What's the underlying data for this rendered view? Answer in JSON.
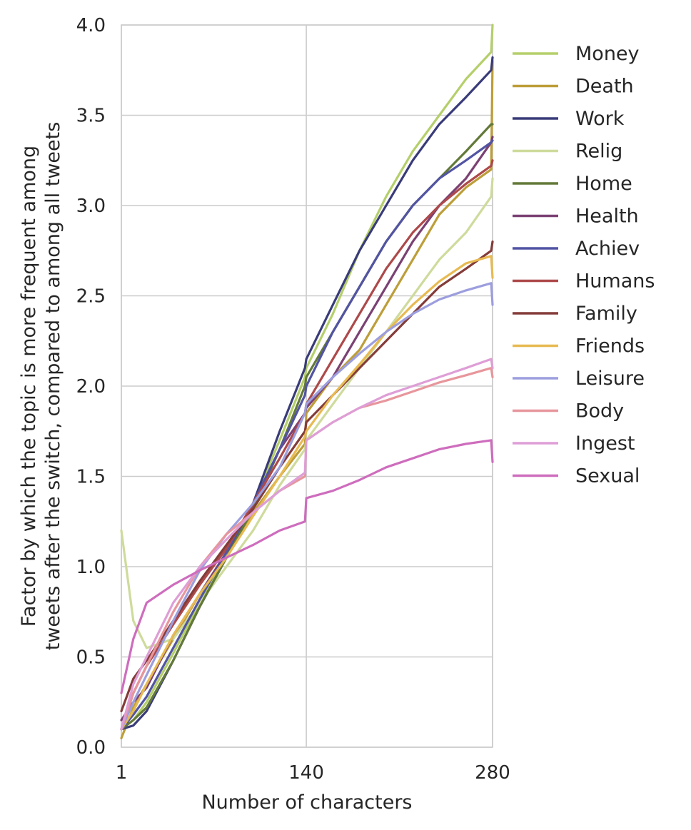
{
  "chart_data": {
    "type": "line",
    "xlabel": "Number of characters",
    "ylabel_lines": [
      "Factor by which the topic is more frequent among",
      "tweets after the switch, compared to among all tweets"
    ],
    "xlim": [
      1,
      280
    ],
    "ylim": [
      0,
      4
    ],
    "xticks": [
      1,
      140,
      280
    ],
    "xtick_labels": [
      "1",
      "140",
      "280"
    ],
    "yticks": [
      0,
      0.5,
      1,
      1.5,
      2,
      2.5,
      3,
      3.5,
      4
    ],
    "ytick_labels": [
      "0.0",
      "0.5",
      "1.0",
      "1.5",
      "2.0",
      "2.5",
      "3.0",
      "3.5",
      "4.0"
    ],
    "grid": true,
    "legend_position": "outside-right",
    "x": [
      1,
      10,
      20,
      40,
      60,
      80,
      100,
      120,
      139,
      140,
      160,
      180,
      200,
      220,
      240,
      260,
      279,
      280
    ],
    "series": [
      {
        "name": "Money",
        "color": "#b5cf6b",
        "values": [
          0.1,
          0.15,
          0.25,
          0.52,
          0.8,
          1.05,
          1.35,
          1.7,
          2.05,
          2.1,
          2.4,
          2.75,
          3.05,
          3.3,
          3.5,
          3.7,
          3.85,
          4.0
        ]
      },
      {
        "name": "Death",
        "color": "#bd9e39",
        "values": [
          0.05,
          0.22,
          0.35,
          0.6,
          0.85,
          1.05,
          1.3,
          1.5,
          1.68,
          1.85,
          2.05,
          2.2,
          2.45,
          2.7,
          2.95,
          3.1,
          3.2,
          3.8
        ]
      },
      {
        "name": "Work",
        "color": "#393b79",
        "values": [
          0.1,
          0.12,
          0.2,
          0.48,
          0.78,
          1.05,
          1.35,
          1.75,
          2.1,
          2.15,
          2.45,
          2.75,
          3.0,
          3.25,
          3.45,
          3.6,
          3.75,
          3.82
        ]
      },
      {
        "name": "Relig",
        "color": "#cedb9c",
        "values": [
          1.2,
          0.7,
          0.55,
          0.6,
          0.8,
          1.0,
          1.2,
          1.45,
          1.65,
          1.7,
          1.9,
          2.1,
          2.3,
          2.5,
          2.7,
          2.85,
          3.05,
          3.15
        ]
      },
      {
        "name": "Home",
        "color": "#637939",
        "values": [
          0.1,
          0.15,
          0.22,
          0.48,
          0.78,
          1.05,
          1.32,
          1.65,
          2.0,
          2.05,
          2.3,
          2.55,
          2.8,
          3.0,
          3.15,
          3.3,
          3.45,
          3.45
        ]
      },
      {
        "name": "Health",
        "color": "#7b4173",
        "values": [
          0.15,
          0.25,
          0.33,
          0.62,
          0.85,
          1.08,
          1.35,
          1.65,
          1.85,
          1.88,
          2.05,
          2.3,
          2.55,
          2.8,
          3.0,
          3.15,
          3.35,
          3.38
        ]
      },
      {
        "name": "Achiev",
        "color": "#5254a3",
        "values": [
          0.1,
          0.18,
          0.28,
          0.55,
          0.82,
          1.08,
          1.35,
          1.65,
          1.95,
          2.0,
          2.3,
          2.55,
          2.8,
          3.0,
          3.15,
          3.25,
          3.35,
          3.36
        ]
      },
      {
        "name": "Humans",
        "color": "#ad494a",
        "values": [
          0.1,
          0.3,
          0.45,
          0.68,
          0.9,
          1.1,
          1.35,
          1.6,
          1.85,
          1.9,
          2.15,
          2.4,
          2.65,
          2.85,
          3.0,
          3.12,
          3.22,
          3.25
        ]
      },
      {
        "name": "Family",
        "color": "#843c39",
        "values": [
          0.2,
          0.38,
          0.48,
          0.7,
          0.92,
          1.12,
          1.32,
          1.55,
          1.75,
          1.8,
          1.95,
          2.1,
          2.25,
          2.4,
          2.55,
          2.65,
          2.75,
          2.8
        ]
      },
      {
        "name": "Friends",
        "color": "#e7ba52",
        "values": [
          0.1,
          0.2,
          0.35,
          0.62,
          0.85,
          1.05,
          1.28,
          1.5,
          1.72,
          1.75,
          1.95,
          2.12,
          2.3,
          2.45,
          2.58,
          2.68,
          2.72,
          2.6
        ]
      },
      {
        "name": "Leisure",
        "color": "#9c9ede",
        "values": [
          0.1,
          0.25,
          0.4,
          0.7,
          0.98,
          1.18,
          1.35,
          1.55,
          1.85,
          1.9,
          2.05,
          2.18,
          2.3,
          2.4,
          2.48,
          2.53,
          2.57,
          2.45
        ]
      },
      {
        "name": "Body",
        "color": "#e7969c",
        "values": [
          0.1,
          0.3,
          0.45,
          0.75,
          1.0,
          1.18,
          1.3,
          1.42,
          1.5,
          1.7,
          1.8,
          1.88,
          1.92,
          1.97,
          2.02,
          2.06,
          2.1,
          2.05
        ]
      },
      {
        "name": "Ingest",
        "color": "#de9ed6",
        "values": [
          0.1,
          0.35,
          0.5,
          0.8,
          1.0,
          1.15,
          1.3,
          1.42,
          1.52,
          1.7,
          1.8,
          1.88,
          1.95,
          2.0,
          2.05,
          2.1,
          2.15,
          2.1
        ]
      },
      {
        "name": "Sexual",
        "color": "#ce6dbd",
        "values": [
          0.3,
          0.6,
          0.8,
          0.9,
          0.98,
          1.05,
          1.12,
          1.2,
          1.25,
          1.38,
          1.42,
          1.48,
          1.55,
          1.6,
          1.65,
          1.68,
          1.7,
          1.58
        ]
      }
    ]
  }
}
